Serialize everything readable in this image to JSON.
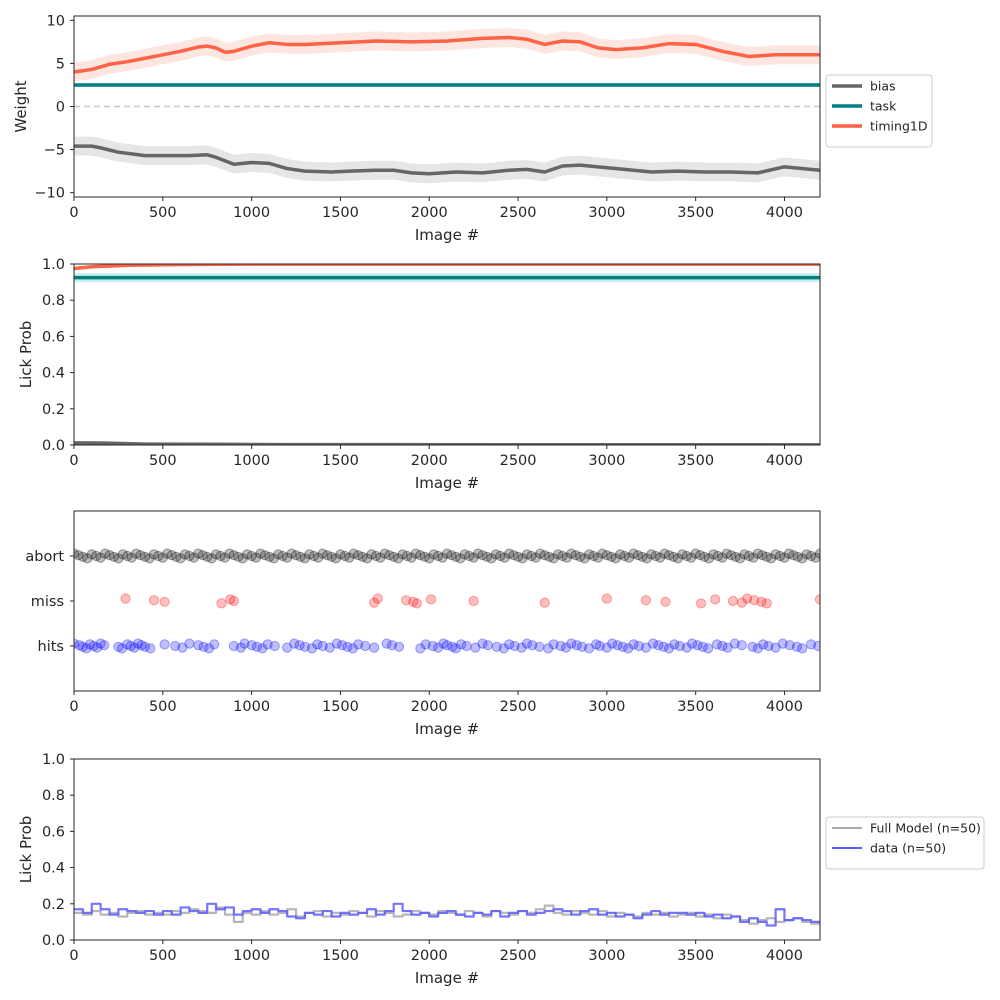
{
  "chart_data": [
    {
      "type": "line",
      "xlabel": "Image #",
      "ylabel": "Weight",
      "xlim": [
        0,
        4200
      ],
      "ylim": [
        -10.5,
        10.5
      ],
      "xticks": [
        0,
        500,
        1000,
        1500,
        2000,
        2500,
        3000,
        3500,
        4000
      ],
      "yticks": [
        -10,
        -5,
        0,
        5,
        10
      ],
      "reference_line": {
        "y": 0,
        "style": "dashed",
        "color": "#c8c8c8"
      },
      "legend": {
        "placement": "outside-right",
        "entries": [
          "bias",
          "task",
          "timing1D"
        ]
      },
      "series": [
        {
          "name": "bias",
          "color": "#666666",
          "band_color": "#e6e6e6",
          "x": [
            0,
            100,
            150,
            250,
            400,
            500,
            550,
            650,
            750,
            800,
            900,
            1000,
            1100,
            1200,
            1300,
            1450,
            1550,
            1700,
            1800,
            1900,
            2000,
            2150,
            2300,
            2450,
            2550,
            2650,
            2750,
            2850,
            2950,
            3100,
            3250,
            3400,
            3550,
            3700,
            3850,
            4000,
            4200
          ],
          "y": [
            -4.6,
            -4.6,
            -4.8,
            -5.3,
            -5.7,
            -5.7,
            -5.7,
            -5.7,
            -5.6,
            -5.9,
            -6.7,
            -6.5,
            -6.6,
            -7.2,
            -7.5,
            -7.6,
            -7.5,
            -7.4,
            -7.4,
            -7.7,
            -7.8,
            -7.6,
            -7.7,
            -7.4,
            -7.3,
            -7.6,
            -6.9,
            -6.8,
            -7.0,
            -7.3,
            -7.6,
            -7.5,
            -7.6,
            -7.6,
            -7.7,
            -7.0,
            -7.4
          ],
          "band_halfwidth": 1.1
        },
        {
          "name": "task",
          "color": "#008080",
          "band_color": "#cceeee",
          "x": [
            0,
            4200
          ],
          "y": [
            2.5,
            2.5
          ],
          "band_halfwidth": 0.25
        },
        {
          "name": "timing1D",
          "color": "#ff6347",
          "band_color": "#fde5e0",
          "x": [
            0,
            100,
            200,
            300,
            400,
            500,
            600,
            700,
            750,
            800,
            850,
            900,
            1000,
            1100,
            1200,
            1300,
            1500,
            1700,
            1900,
            2100,
            2300,
            2450,
            2550,
            2650,
            2750,
            2850,
            2950,
            3050,
            3200,
            3350,
            3500,
            3650,
            3800,
            3950,
            4200
          ],
          "y": [
            4.0,
            4.3,
            4.9,
            5.2,
            5.6,
            6.0,
            6.4,
            6.9,
            7.0,
            6.8,
            6.3,
            6.4,
            7.0,
            7.4,
            7.2,
            7.2,
            7.4,
            7.6,
            7.5,
            7.6,
            7.9,
            8.0,
            7.8,
            7.2,
            7.6,
            7.5,
            6.8,
            6.6,
            6.8,
            7.3,
            7.2,
            6.4,
            5.8,
            6.0,
            6.0
          ],
          "band_halfwidth": 1.1
        }
      ]
    },
    {
      "type": "line",
      "xlabel": "Image #",
      "ylabel": "Lick Prob",
      "xlim": [
        0,
        4200
      ],
      "ylim": [
        0,
        1.0
      ],
      "xticks": [
        0,
        500,
        1000,
        1500,
        2000,
        2500,
        3000,
        3500,
        4000
      ],
      "yticks": [
        0.0,
        0.2,
        0.4,
        0.6,
        0.8,
        1.0
      ],
      "series": [
        {
          "color": "#ff6347",
          "band_color": "#fde5e0",
          "x": [
            0,
            100,
            300,
            600,
            1000,
            4200
          ],
          "y": [
            0.975,
            0.985,
            0.993,
            0.997,
            0.999,
            0.999
          ],
          "band_halfwidth": 0.01
        },
        {
          "color": "#008080",
          "band_color": "#cceeee",
          "x": [
            0,
            4200
          ],
          "y": [
            0.925,
            0.925
          ],
          "band_halfwidth": 0.025
        },
        {
          "color": "#666666",
          "band_color": "#e6e6e6",
          "x": [
            0,
            150,
            400,
            800,
            1200,
            4200
          ],
          "y": [
            0.012,
            0.011,
            0.005,
            0.004,
            0.002,
            0.001
          ],
          "band_halfwidth": 0.006
        }
      ]
    },
    {
      "type": "scatter",
      "xlabel": "Image #",
      "xlim": [
        0,
        4200
      ],
      "xticks": [
        0,
        500,
        1000,
        1500,
        2000,
        2500,
        3000,
        3500,
        4000
      ],
      "categories": [
        "hits",
        "miss",
        "abort"
      ],
      "series": [
        {
          "name": "abort",
          "color": "#000000",
          "x": [
            0,
            25,
            50,
            75,
            100,
            125,
            150,
            175,
            200,
            225,
            250,
            275,
            300,
            325,
            350,
            375,
            400,
            425,
            450,
            475,
            500,
            525,
            550,
            575,
            600,
            625,
            650,
            675,
            700,
            725,
            750,
            775,
            800,
            825,
            850,
            875,
            900,
            925,
            950,
            975,
            1000,
            1025,
            1050,
            1075,
            1100,
            1125,
            1150,
            1175,
            1200,
            1225,
            1250,
            1275,
            1300,
            1325,
            1350,
            1375,
            1400,
            1425,
            1450,
            1475,
            1500,
            1525,
            1550,
            1575,
            1600,
            1625,
            1650,
            1675,
            1700,
            1725,
            1750,
            1775,
            1800,
            1825,
            1850,
            1875,
            1900,
            1925,
            1950,
            1975,
            2000,
            2025,
            2050,
            2075,
            2100,
            2125,
            2150,
            2175,
            2200,
            2225,
            2250,
            2275,
            2300,
            2325,
            2350,
            2375,
            2400,
            2425,
            2450,
            2475,
            2500,
            2525,
            2550,
            2575,
            2600,
            2625,
            2650,
            2675,
            2700,
            2725,
            2750,
            2775,
            2800,
            2825,
            2850,
            2875,
            2900,
            2925,
            2950,
            2975,
            3000,
            3025,
            3050,
            3075,
            3100,
            3125,
            3150,
            3175,
            3200,
            3225,
            3250,
            3275,
            3300,
            3325,
            3350,
            3375,
            3400,
            3425,
            3450,
            3475,
            3500,
            3525,
            3550,
            3575,
            3600,
            3625,
            3650,
            3675,
            3700,
            3725,
            3750,
            3775,
            3800,
            3825,
            3850,
            3875,
            3900,
            3925,
            3950,
            3975,
            4000,
            4025,
            4050,
            4075,
            4100,
            4125,
            4150,
            4175,
            4200
          ]
        },
        {
          "name": "miss",
          "color": "#ff0000",
          "x": [
            290,
            450,
            510,
            830,
            880,
            900,
            1690,
            1710,
            1870,
            1910,
            1930,
            2010,
            2250,
            2650,
            3000,
            3220,
            3330,
            3530,
            3610,
            3710,
            3760,
            3790,
            3830,
            3870,
            3900,
            4200
          ]
        },
        {
          "name": "hits",
          "color": "#0000ff",
          "x": [
            0,
            30,
            50,
            70,
            90,
            110,
            130,
            150,
            170,
            250,
            270,
            300,
            320,
            340,
            360,
            380,
            400,
            430,
            510,
            570,
            610,
            650,
            700,
            730,
            760,
            790,
            900,
            940,
            960,
            1000,
            1030,
            1060,
            1090,
            1130,
            1200,
            1240,
            1270,
            1300,
            1340,
            1370,
            1400,
            1440,
            1480,
            1510,
            1540,
            1570,
            1600,
            1640,
            1690,
            1760,
            1790,
            1830,
            1950,
            1980,
            2020,
            2050,
            2080,
            2100,
            2130,
            2150,
            2180,
            2210,
            2260,
            2300,
            2330,
            2380,
            2420,
            2450,
            2480,
            2520,
            2550,
            2580,
            2620,
            2670,
            2700,
            2740,
            2770,
            2800,
            2830,
            2860,
            2900,
            2940,
            2960,
            3000,
            3030,
            3060,
            3090,
            3120,
            3150,
            3180,
            3220,
            3260,
            3290,
            3320,
            3350,
            3380,
            3410,
            3450,
            3480,
            3510,
            3540,
            3570,
            3620,
            3650,
            3680,
            3720,
            3760,
            3820,
            3850,
            3880,
            3910,
            3950,
            3990,
            4030,
            4070,
            4100,
            4150,
            4190
          ]
        }
      ]
    },
    {
      "type": "line",
      "xlabel": "Image #",
      "ylabel": "Lick Prob",
      "xlim": [
        0,
        4200
      ],
      "ylim": [
        0,
        1.0
      ],
      "xticks": [
        0,
        500,
        1000,
        1500,
        2000,
        2500,
        3000,
        3500,
        4000
      ],
      "yticks": [
        0.0,
        0.2,
        0.4,
        0.6,
        0.8,
        1.0
      ],
      "legend": {
        "placement": "outside-right",
        "entries": [
          "Full Model (n=50)",
          "data (n=50)"
        ]
      },
      "series": [
        {
          "name": "Full Model (n=50)",
          "color": "#aaaaaa",
          "x": [
            0,
            50,
            100,
            150,
            200,
            250,
            300,
            350,
            400,
            450,
            500,
            550,
            600,
            650,
            700,
            750,
            800,
            850,
            900,
            950,
            1000,
            1050,
            1100,
            1150,
            1200,
            1250,
            1300,
            1350,
            1400,
            1450,
            1500,
            1550,
            1600,
            1650,
            1700,
            1750,
            1800,
            1850,
            1900,
            1950,
            2000,
            2050,
            2100,
            2150,
            2200,
            2250,
            2300,
            2350,
            2400,
            2450,
            2500,
            2550,
            2600,
            2650,
            2700,
            2750,
            2800,
            2850,
            2900,
            2950,
            3000,
            3050,
            3100,
            3150,
            3200,
            3250,
            3300,
            3350,
            3400,
            3450,
            3500,
            3550,
            3600,
            3650,
            3700,
            3750,
            3800,
            3850,
            3900,
            3950,
            4000,
            4050,
            4100,
            4150
          ],
          "y": [
            0.15,
            0.14,
            0.16,
            0.14,
            0.15,
            0.13,
            0.15,
            0.16,
            0.14,
            0.15,
            0.14,
            0.16,
            0.15,
            0.17,
            0.16,
            0.15,
            0.18,
            0.14,
            0.1,
            0.15,
            0.14,
            0.16,
            0.14,
            0.15,
            0.17,
            0.13,
            0.15,
            0.16,
            0.13,
            0.15,
            0.14,
            0.16,
            0.15,
            0.13,
            0.16,
            0.15,
            0.13,
            0.14,
            0.16,
            0.15,
            0.14,
            0.16,
            0.15,
            0.14,
            0.16,
            0.15,
            0.13,
            0.16,
            0.15,
            0.14,
            0.16,
            0.15,
            0.17,
            0.19,
            0.15,
            0.14,
            0.16,
            0.15,
            0.14,
            0.16,
            0.13,
            0.15,
            0.14,
            0.13,
            0.15,
            0.14,
            0.15,
            0.13,
            0.14,
            0.15,
            0.13,
            0.14,
            0.12,
            0.14,
            0.13,
            0.11,
            0.09,
            0.11,
            0.12,
            0.1,
            0.11,
            0.12,
            0.1,
            0.09
          ]
        },
        {
          "name": "data (n=50)",
          "color": "#5c5cff",
          "x": [
            0,
            50,
            100,
            150,
            200,
            250,
            300,
            350,
            400,
            450,
            500,
            550,
            600,
            650,
            700,
            750,
            800,
            850,
            900,
            950,
            1000,
            1050,
            1100,
            1150,
            1200,
            1250,
            1300,
            1350,
            1400,
            1450,
            1500,
            1550,
            1600,
            1650,
            1700,
            1750,
            1800,
            1850,
            1900,
            1950,
            2000,
            2050,
            2100,
            2150,
            2200,
            2250,
            2300,
            2350,
            2400,
            2450,
            2500,
            2550,
            2600,
            2650,
            2700,
            2750,
            2800,
            2850,
            2900,
            2950,
            3000,
            3050,
            3100,
            3150,
            3200,
            3250,
            3300,
            3350,
            3400,
            3450,
            3500,
            3550,
            3600,
            3650,
            3700,
            3750,
            3800,
            3850,
            3900,
            3950,
            4000,
            4050,
            4100,
            4150
          ],
          "y": [
            0.17,
            0.15,
            0.2,
            0.17,
            0.14,
            0.17,
            0.16,
            0.15,
            0.16,
            0.14,
            0.16,
            0.14,
            0.18,
            0.16,
            0.15,
            0.2,
            0.17,
            0.18,
            0.14,
            0.16,
            0.17,
            0.15,
            0.17,
            0.16,
            0.13,
            0.12,
            0.15,
            0.14,
            0.16,
            0.13,
            0.15,
            0.14,
            0.15,
            0.17,
            0.14,
            0.16,
            0.2,
            0.16,
            0.14,
            0.15,
            0.13,
            0.15,
            0.16,
            0.14,
            0.13,
            0.15,
            0.14,
            0.16,
            0.13,
            0.15,
            0.16,
            0.14,
            0.15,
            0.16,
            0.17,
            0.16,
            0.14,
            0.16,
            0.17,
            0.14,
            0.15,
            0.13,
            0.14,
            0.12,
            0.14,
            0.16,
            0.14,
            0.15,
            0.15,
            0.14,
            0.15,
            0.13,
            0.14,
            0.12,
            0.13,
            0.1,
            0.12,
            0.1,
            0.08,
            0.17,
            0.11,
            0.12,
            0.11,
            0.1
          ]
        }
      ]
    }
  ]
}
